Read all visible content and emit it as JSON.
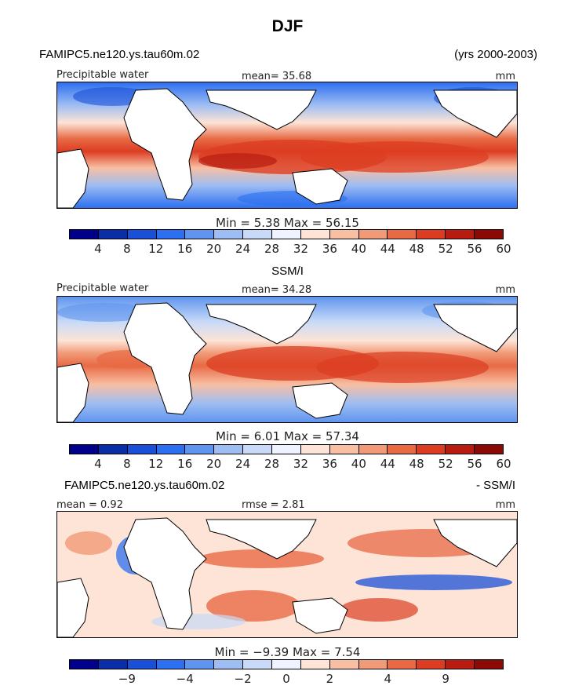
{
  "figure": {
    "title": "DJF",
    "model_label": "FAMIPC5.ne120.ys.tau60m.02",
    "years_label": "(yrs 2000-2003)"
  },
  "colors": {
    "abs_scale": [
      "#00008b",
      "#0a2ea6",
      "#1a50d8",
      "#2c6ff0",
      "#5f95ee",
      "#9ebdf3",
      "#c8daf8",
      "#eef3ff",
      "#fde4d6",
      "#f8bfa3",
      "#f19a77",
      "#e86a45",
      "#dc3d22",
      "#b81c10",
      "#8b0a05"
    ],
    "diff_scale": [
      "#00008b",
      "#0a2ea6",
      "#1a50d8",
      "#2c6ff0",
      "#5f95ee",
      "#9ebdf3",
      "#c8daf8",
      "#eef3ff",
      "#fde4d6",
      "#f8bfa3",
      "#f19a77",
      "#e86a45",
      "#dc3d22",
      "#b81c10",
      "#8b0a05"
    ]
  },
  "panels": [
    {
      "id": "model",
      "top_title": "",
      "field_label": "Precipitable water",
      "stat_label": "mean=  35.68",
      "units": "mm",
      "minmax": "Min =    5.38  Max =   56.15",
      "ticks": [
        "4",
        "8",
        "12",
        "16",
        "20",
        "24",
        "28",
        "32",
        "36",
        "40",
        "44",
        "48",
        "52",
        "56",
        "60"
      ]
    },
    {
      "id": "obs",
      "top_title": "SSM/I",
      "field_label": "Precipitable water",
      "stat_label": "mean=  34.28",
      "units": "mm",
      "minmax": "Min =    6.01  Max =   57.34",
      "ticks": [
        "4",
        "8",
        "12",
        "16",
        "20",
        "24",
        "28",
        "32",
        "36",
        "40",
        "44",
        "48",
        "52",
        "56",
        "60"
      ]
    },
    {
      "id": "diff",
      "top_title_left": "FAMIPC5.ne120.ys.tau60m.02",
      "top_title_right": "- SSM/I",
      "field_label": "mean =     0.92",
      "stat_label": "rmse =     2.81",
      "units": "mm",
      "minmax": "Min =   −9.39  Max =    7.54",
      "ticks": [
        "−9",
        "−4",
        "−2",
        "0",
        "2",
        "4",
        "9"
      ]
    }
  ],
  "chart_data": [
    {
      "type": "heatmap",
      "title": "Precipitable water",
      "subtitle": "FAMIPC5.ne120.ys.tau60m.02",
      "units": "mm",
      "mean": 35.68,
      "min": 5.38,
      "max": 56.15,
      "levels": [
        4,
        8,
        12,
        16,
        20,
        24,
        28,
        32,
        36,
        40,
        44,
        48,
        52,
        56,
        60
      ]
    },
    {
      "type": "heatmap",
      "title": "Precipitable water",
      "subtitle": "SSM/I",
      "units": "mm",
      "mean": 34.28,
      "min": 6.01,
      "max": 57.34,
      "levels": [
        4,
        8,
        12,
        16,
        20,
        24,
        28,
        32,
        36,
        40,
        44,
        48,
        52,
        56,
        60
      ]
    },
    {
      "type": "heatmap",
      "title": "FAMIPC5.ne120.ys.tau60m.02 - SSM/I",
      "units": "mm",
      "mean": 0.92,
      "rmse": 2.81,
      "min": -9.39,
      "max": 7.54,
      "levels": [
        -9,
        -4,
        -2,
        0,
        2,
        4,
        9
      ]
    }
  ]
}
